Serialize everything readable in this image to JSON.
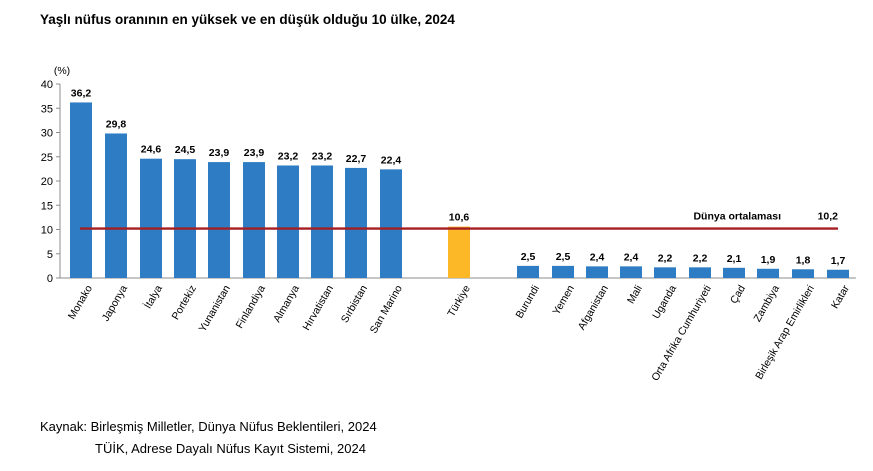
{
  "title": "Yaşlı nüfus oranının en yüksek ve en düşük olduğu 10 ülke, 2024",
  "sources": {
    "line1": "Kaynak: Birleşmiş Milletler, Dünya Nüfus Beklentileri, 2024",
    "line2": "TÜİK, Adrese Dayalı Nüfus Kayıt Sistemi, 2024"
  },
  "colors": {
    "bar": "#2E7CC3",
    "highlight": "#FDB827",
    "average_line": "#A41E22"
  },
  "chart_data": {
    "type": "bar",
    "unit_label": "(%)",
    "ylim": [
      0,
      40
    ],
    "yticks": [
      0,
      5,
      10,
      15,
      20,
      25,
      30,
      35,
      40
    ],
    "grid": false,
    "categories": [
      "Monako",
      "Japonya",
      "İtalya",
      "Portekiz",
      "Yunanistan",
      "Finlandiya",
      "Almanya",
      "Hırvatistan",
      "Sırbistan",
      "San Marino",
      "Türkiye",
      "Burundi",
      "Yemen",
      "Afganistan",
      "Mali",
      "Uganda",
      "Orta Afrika Cumhuriyeti",
      "Çad",
      "Zambiya",
      "Birleşik Arap Emirlikleri",
      "Katar"
    ],
    "values": [
      36.2,
      29.8,
      24.6,
      24.5,
      23.9,
      23.9,
      23.2,
      23.2,
      22.7,
      22.4,
      10.6,
      2.5,
      2.5,
      2.4,
      2.4,
      2.2,
      2.2,
      2.1,
      1.9,
      1.8,
      1.7
    ],
    "value_labels": [
      "36,2",
      "29,8",
      "24,6",
      "24,5",
      "23,9",
      "23,9",
      "23,2",
      "23,2",
      "22,7",
      "22,4",
      "10,6",
      "2,5",
      "2,5",
      "2,4",
      "2,4",
      "2,2",
      "2,2",
      "2,1",
      "1,9",
      "1,8",
      "1,7"
    ],
    "highlight": "Türkiye",
    "reference_line": {
      "label": "Dünya ortalaması",
      "value": 10.2,
      "value_label": "10,2"
    }
  }
}
